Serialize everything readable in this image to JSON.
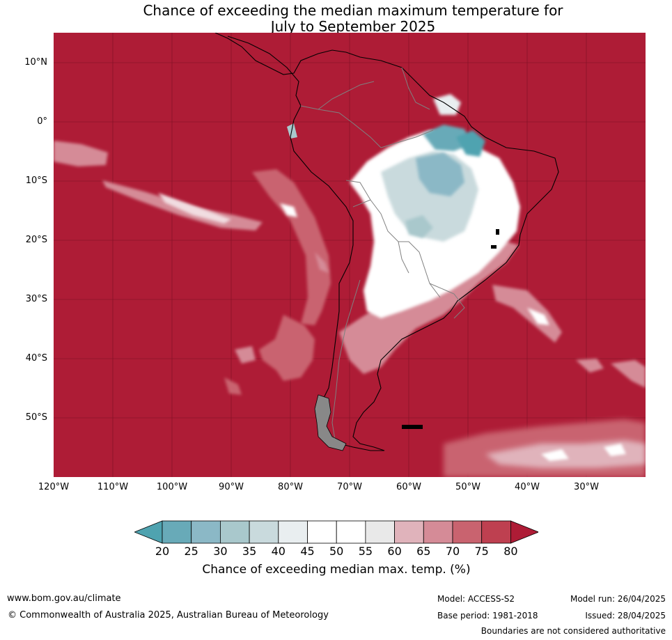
{
  "title": {
    "line1": "Chance of exceeding the median maximum temperature for",
    "line2": "July to September 2025"
  },
  "map": {
    "lat_labels": [
      "10°N",
      "0°",
      "10°S",
      "20°S",
      "30°S",
      "40°S",
      "50°S"
    ],
    "lon_labels": [
      "120°W",
      "110°W",
      "100°W",
      "90°W",
      "80°W",
      "70°W",
      "60°W",
      "50°W",
      "40°W",
      "30°W"
    ],
    "colors": {
      "background": "#ae1c36",
      "land_border": "#000000",
      "country_border": "#808080"
    }
  },
  "legend": {
    "ticks": [
      "20",
      "25",
      "30",
      "35",
      "40",
      "45",
      "50",
      "55",
      "60",
      "65",
      "70",
      "75",
      "80"
    ],
    "colors": [
      "#4fa3b0",
      "#68aab8",
      "#8bb8c6",
      "#a9c8cc",
      "#c9dadd",
      "#e9eef0",
      "#ffffff",
      "#ffffff",
      "#e9e9e9",
      "#e0b3bb",
      "#d58b97",
      "#c9636f",
      "#be4050",
      "#ae1c36"
    ],
    "label": "Chance of exceeding median max. temp. (%)"
  },
  "footer": {
    "website": "www.bom.gov.au/climate",
    "copyright": "© Commonwealth of Australia 2025, Australian Bureau of Meteorology",
    "model": "Model: ACCESS-S2",
    "base_period": "Base period: 1981-2018",
    "model_run": "Model run: 26/04/2025",
    "issued": "Issued: 28/04/2025",
    "disclaimer": "Boundaries are not considered authoritative"
  }
}
